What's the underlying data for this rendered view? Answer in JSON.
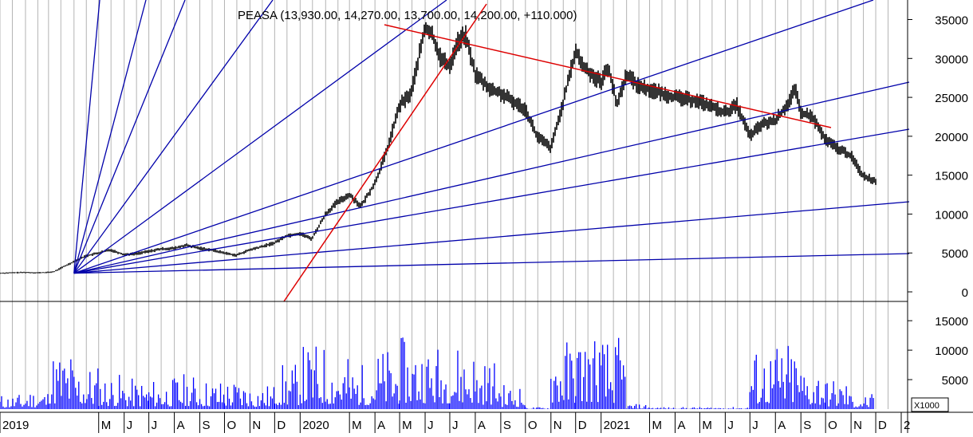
{
  "chart_data": [
    {
      "type": "candlestick",
      "title": "PEASA (13,930.00, 14,270.00, 13,700.00, 14,200.00, +110.000)",
      "ylim": [
        0,
        37000
      ],
      "yticks": [
        0,
        5000,
        10000,
        15000,
        20000,
        25000,
        30000,
        35000
      ],
      "ytick_labels": [
        "0",
        "5000",
        "10000",
        "15000",
        "20000",
        "25000",
        "30000",
        "35000"
      ],
      "grid": true,
      "series": [
        {
          "style": "price",
          "x": [
            "2019-01-01",
            "2019-01-15",
            "2019-02-01",
            "2019-02-15",
            "2019-03-01",
            "2019-03-08",
            "2019-03-15",
            "2019-04-01",
            "2019-04-15",
            "2019-05-01",
            "2019-05-15",
            "2019-06-01",
            "2019-06-15",
            "2019-07-01",
            "2019-07-15",
            "2019-08-01",
            "2019-08-15",
            "2019-09-01",
            "2019-09-15",
            "2019-10-01",
            "2019-10-15",
            "2019-11-01",
            "2019-11-15",
            "2019-12-01",
            "2019-12-15",
            "2020-01-01",
            "2020-01-15",
            "2020-02-01",
            "2020-02-15",
            "2020-03-01",
            "2020-03-15",
            "2020-04-01",
            "2020-04-15",
            "2020-05-01",
            "2020-05-15",
            "2020-06-01",
            "2020-06-10",
            "2020-06-20",
            "2020-07-01",
            "2020-07-10",
            "2020-07-20",
            "2020-08-01",
            "2020-08-10",
            "2020-08-20",
            "2020-09-01",
            "2020-09-15",
            "2020-10-01",
            "2020-10-15",
            "2020-11-01",
            "2020-11-15",
            "2020-12-01",
            "2020-12-10",
            "2020-12-20",
            "2021-01-01",
            "2021-01-10",
            "2021-01-20",
            "2021-02-01",
            "2021-02-15",
            "2021-03-01",
            "2021-04-01",
            "2021-05-01",
            "2021-06-01",
            "2021-06-15",
            "2021-07-01",
            "2021-07-15",
            "2021-08-01",
            "2021-08-15",
            "2021-08-25",
            "2021-09-01",
            "2021-09-15",
            "2021-10-01",
            "2021-10-15",
            "2021-11-01",
            "2021-11-15",
            "2021-12-01"
          ],
          "values": [
            2400,
            2450,
            2500,
            2450,
            2500,
            2600,
            3000,
            3900,
            4600,
            5000,
            5400,
            4800,
            4900,
            5200,
            5500,
            5600,
            6000,
            5600,
            5400,
            5000,
            4700,
            5400,
            5800,
            6300,
            7200,
            7500,
            6800,
            10000,
            11500,
            12500,
            11000,
            14000,
            18000,
            24000,
            25500,
            34000,
            33000,
            30000,
            29000,
            32000,
            33000,
            28000,
            27000,
            26000,
            25500,
            24500,
            23500,
            20000,
            18500,
            24000,
            31000,
            29000,
            28000,
            27000,
            29000,
            24000,
            28000,
            26500,
            26000,
            25000,
            24500,
            23000,
            24000,
            20000,
            21500,
            22000,
            24000,
            26000,
            23000,
            22500,
            19500,
            18500,
            17500,
            15000,
            14200
          ]
        }
      ],
      "overlays": {
        "fan_lines": {
          "color": "#0000aa",
          "count": 10
        },
        "trend_lines": {
          "color": "#dd0000",
          "count": 2
        }
      }
    },
    {
      "type": "bar",
      "ylim": [
        0,
        18000
      ],
      "yticks": [
        5000,
        10000,
        15000
      ],
      "ytick_labels": [
        "5000",
        "10000",
        "15000"
      ],
      "unit_label": "X1000",
      "color": "#0000ff",
      "series": [
        {
          "style": "volume",
          "x": [
            "2019-01",
            "2019-02",
            "2019-03",
            "2019-04",
            "2019-05",
            "2019-06",
            "2019-07",
            "2019-08",
            "2019-09",
            "2019-10",
            "2019-11",
            "2019-12",
            "2020-01",
            "2020-02",
            "2020-03",
            "2020-04",
            "2020-05",
            "2020-06",
            "2020-07",
            "2020-08",
            "2020-09",
            "2020-10",
            "2020-11",
            "2020-12",
            "2021-01",
            "2021-02",
            "2021-03",
            "2021-04",
            "2021-05",
            "2021-06",
            "2021-07",
            "2021-08",
            "2021-09",
            "2021-10",
            "2021-11"
          ],
          "values": [
            1500,
            2000,
            6000,
            4500,
            3500,
            3000,
            3000,
            3500,
            3000,
            3000,
            2500,
            4500,
            6500,
            5500,
            4500,
            6000,
            7000,
            6500,
            6500,
            5000,
            2500,
            200,
            7000,
            8000,
            7000,
            500,
            200,
            200,
            200,
            200,
            6000,
            6500,
            4500,
            3000,
            1500
          ]
        }
      ]
    }
  ],
  "x_axis": {
    "labels": [
      "2019",
      "M",
      "J",
      "J",
      "A",
      "S",
      "O",
      "N",
      "D",
      "2020",
      "M",
      "A",
      "M",
      "J",
      "J",
      "A",
      "S",
      "O",
      "N",
      "D",
      "2021",
      "M",
      "A",
      "M",
      "J",
      "J",
      "A",
      "S",
      "O",
      "N",
      "D",
      "2"
    ],
    "months": [
      "2019-01",
      "2019-05",
      "2019-06",
      "2019-07",
      "2019-08",
      "2019-09",
      "2019-10",
      "2019-11",
      "2019-12",
      "2020-01",
      "2020-03",
      "2020-04",
      "2020-05",
      "2020-06",
      "2020-07",
      "2020-08",
      "2020-09",
      "2020-10",
      "2020-11",
      "2020-12",
      "2021-01",
      "2021-03",
      "2021-04",
      "2021-05",
      "2021-06",
      "2021-07",
      "2021-08",
      "2021-09",
      "2021-10",
      "2021-11",
      "2021-12",
      "2022-01"
    ]
  },
  "colors": {
    "price": "#000000",
    "volume": "#0000ff",
    "grid": "#b4b4b4",
    "fan": "#0000aa",
    "trend": "#dd0000"
  }
}
